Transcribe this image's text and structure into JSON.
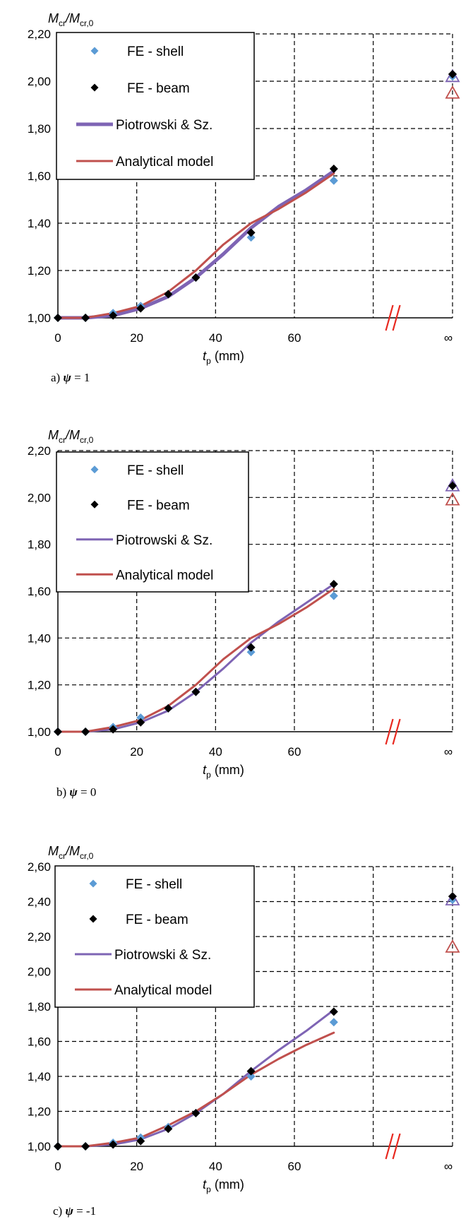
{
  "chart_data": [
    {
      "type": "line",
      "ylabel_main": "M",
      "ylabel_main_sub": "cr",
      "ylabel_sep": "/",
      "ylabel_den": "M",
      "ylabel_den_sub": "cr,0",
      "xlabel_main": "t",
      "xlabel_sub": "p",
      "xlabel_unit": " (mm)",
      "ylim": [
        1.0,
        2.2
      ],
      "yticks": [
        "1,00",
        "1,20",
        "1,40",
        "1,60",
        "1,80",
        "2,00",
        "2,20"
      ],
      "xticks": [
        "0",
        "20",
        "40",
        "60",
        "∞"
      ],
      "xlim": [
        0,
        100
      ],
      "infinity_x": 100,
      "grid": true,
      "legend_position": "top-left",
      "caption_letter": "a)",
      "caption_symbol": "ψ",
      "caption_value": " = 1",
      "series": [
        {
          "name": "FE - shell",
          "kind": "scatter",
          "marker": "diamond",
          "color": "#5B9BD5",
          "x": [
            0,
            7,
            14,
            21,
            28,
            35,
            49,
            70,
            100
          ],
          "y": [
            1.0,
            1.0,
            1.02,
            1.05,
            1.1,
            1.17,
            1.34,
            1.58,
            2.02
          ]
        },
        {
          "name": "FE - beam",
          "kind": "scatter",
          "marker": "diamond",
          "color": "#000000",
          "x": [
            0,
            7,
            14,
            21,
            28,
            35,
            49,
            70,
            100
          ],
          "y": [
            1.0,
            1.0,
            1.01,
            1.04,
            1.1,
            1.17,
            1.36,
            1.63,
            2.03
          ]
        },
        {
          "name": "Piotrowski & Sz.",
          "kind": "line",
          "color": "#7E64B4",
          "width": 5,
          "x": [
            0,
            7,
            14,
            21,
            28,
            35,
            42,
            49,
            56,
            63,
            70
          ],
          "y": [
            1.0,
            1.0,
            1.01,
            1.04,
            1.09,
            1.17,
            1.27,
            1.38,
            1.47,
            1.54,
            1.62
          ],
          "end_marker": "triangle",
          "end_x": 100,
          "end_y": 2.02
        },
        {
          "name": "Analytical model",
          "kind": "line",
          "color": "#C0504D",
          "width": 3,
          "x": [
            0,
            7,
            14,
            21,
            28,
            35,
            42,
            49,
            56,
            63,
            70
          ],
          "y": [
            1.0,
            1.0,
            1.02,
            1.05,
            1.11,
            1.2,
            1.31,
            1.4,
            1.46,
            1.53,
            1.61
          ],
          "end_marker": "triangle",
          "end_x": 100,
          "end_y": 1.95
        }
      ]
    },
    {
      "type": "line",
      "ylabel_main": "M",
      "ylabel_main_sub": "cr",
      "ylabel_sep": "/",
      "ylabel_den": "M",
      "ylabel_den_sub": "cr,0",
      "xlabel_main": "t",
      "xlabel_sub": "p",
      "xlabel_unit": " (mm)",
      "ylim": [
        1.0,
        2.2
      ],
      "yticks": [
        "1,00",
        "1,20",
        "1,40",
        "1,60",
        "1,80",
        "2,00",
        "2,20"
      ],
      "xticks": [
        "0",
        "20",
        "40",
        "60",
        "∞"
      ],
      "xlim": [
        0,
        100
      ],
      "infinity_x": 100,
      "grid": true,
      "legend_position": "top-left",
      "caption_letter": "b)",
      "caption_symbol": "ψ",
      "caption_value": " = 0",
      "series": [
        {
          "name": "FE - shell",
          "kind": "scatter",
          "marker": "diamond",
          "color": "#5B9BD5",
          "x": [
            0,
            7,
            14,
            21,
            28,
            35,
            49,
            70,
            100
          ],
          "y": [
            1.0,
            1.0,
            1.02,
            1.06,
            1.1,
            1.17,
            1.34,
            1.58,
            2.05
          ]
        },
        {
          "name": "FE - beam",
          "kind": "scatter",
          "marker": "diamond",
          "color": "#000000",
          "x": [
            0,
            7,
            14,
            21,
            28,
            35,
            49,
            70,
            100
          ],
          "y": [
            1.0,
            1.0,
            1.01,
            1.04,
            1.1,
            1.17,
            1.36,
            1.63,
            2.05
          ]
        },
        {
          "name": "Piotrowski & Sz.",
          "kind": "line",
          "color": "#7E64B4",
          "width": 3,
          "x": [
            0,
            7,
            14,
            21,
            28,
            35,
            42,
            49,
            56,
            63,
            70
          ],
          "y": [
            1.0,
            1.0,
            1.01,
            1.04,
            1.09,
            1.17,
            1.27,
            1.38,
            1.47,
            1.55,
            1.63
          ],
          "end_marker": "triangle",
          "end_x": 100,
          "end_y": 2.05
        },
        {
          "name": "Analytical model",
          "kind": "line",
          "color": "#C0504D",
          "width": 3,
          "x": [
            0,
            7,
            14,
            21,
            28,
            35,
            42,
            49,
            56,
            63,
            70
          ],
          "y": [
            1.0,
            1.0,
            1.02,
            1.05,
            1.11,
            1.2,
            1.31,
            1.4,
            1.46,
            1.53,
            1.61
          ],
          "end_marker": "triangle",
          "end_x": 100,
          "end_y": 1.99
        }
      ]
    },
    {
      "type": "line",
      "ylabel_main": "M",
      "ylabel_main_sub": "cr",
      "ylabel_sep": "/",
      "ylabel_den": "M",
      "ylabel_den_sub": "cr,0",
      "xlabel_main": "t",
      "xlabel_sub": "p",
      "xlabel_unit": " (mm)",
      "ylim": [
        1.0,
        2.6
      ],
      "yticks": [
        "1,00",
        "1,20",
        "1,40",
        "1,60",
        "1,80",
        "2,00",
        "2,20",
        "2,40",
        "2,60"
      ],
      "xticks": [
        "0",
        "20",
        "40",
        "60",
        "∞"
      ],
      "xlim": [
        0,
        100
      ],
      "infinity_x": 100,
      "grid": true,
      "legend_position": "top-left",
      "caption_letter": "c)",
      "caption_symbol": "ψ",
      "caption_value": " = -1",
      "series": [
        {
          "name": "FE - shell",
          "kind": "scatter",
          "marker": "diamond",
          "color": "#5B9BD5",
          "x": [
            0,
            7,
            14,
            21,
            28,
            35,
            49,
            70,
            100
          ],
          "y": [
            1.0,
            1.0,
            1.02,
            1.05,
            1.11,
            1.19,
            1.4,
            1.71,
            2.41
          ]
        },
        {
          "name": "FE - beam",
          "kind": "scatter",
          "marker": "diamond",
          "color": "#000000",
          "x": [
            0,
            7,
            14,
            21,
            28,
            35,
            49,
            70,
            100
          ],
          "y": [
            1.0,
            1.0,
            1.01,
            1.03,
            1.1,
            1.19,
            1.43,
            1.77,
            2.43
          ]
        },
        {
          "name": "Piotrowski & Sz.",
          "kind": "line",
          "color": "#7E64B4",
          "width": 3,
          "x": [
            0,
            7,
            14,
            21,
            28,
            35,
            42,
            49,
            56,
            63,
            70
          ],
          "y": [
            1.0,
            1.0,
            1.01,
            1.04,
            1.1,
            1.19,
            1.3,
            1.43,
            1.55,
            1.66,
            1.78
          ],
          "end_marker": "triangle",
          "end_x": 100,
          "end_y": 2.41
        },
        {
          "name": "Analytical model",
          "kind": "line",
          "color": "#C0504D",
          "width": 3,
          "x": [
            0,
            7,
            14,
            21,
            28,
            35,
            42,
            49,
            56,
            63,
            70
          ],
          "y": [
            1.0,
            1.0,
            1.02,
            1.05,
            1.12,
            1.2,
            1.3,
            1.41,
            1.5,
            1.58,
            1.65
          ],
          "end_marker": "triangle",
          "end_x": 100,
          "end_y": 2.14
        }
      ]
    }
  ]
}
